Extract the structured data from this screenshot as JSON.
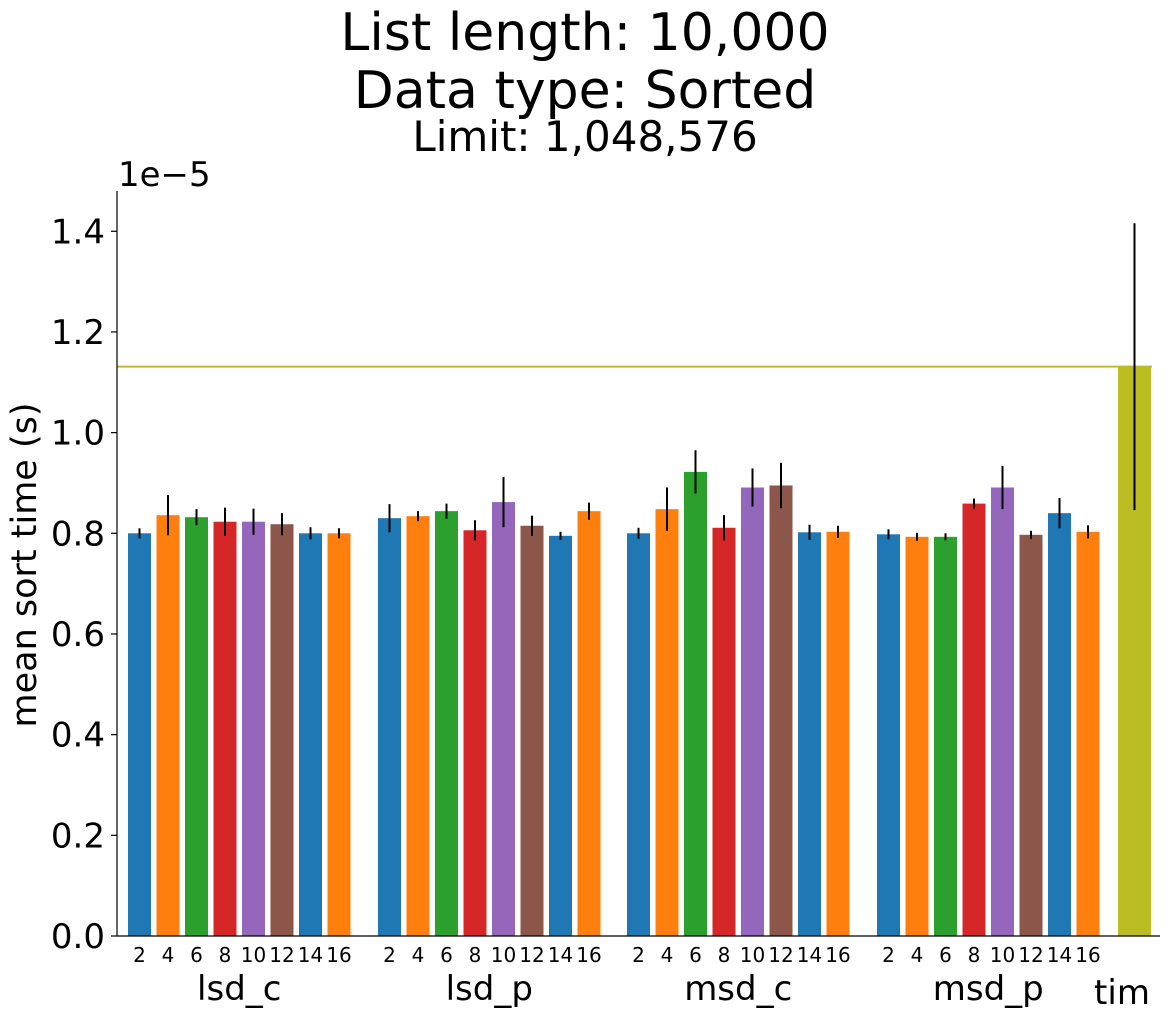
{
  "chart_data": {
    "type": "bar",
    "title": "List length: 10,000",
    "subtitle": "Data type: Sorted",
    "subtitle2": "Limit: 1,048,576",
    "ylabel": "mean sort time (s)",
    "y_offset_label": "1e−5",
    "ylim": [
      0,
      1.48
    ],
    "yticks": [
      "0.0",
      "0.2",
      "0.4",
      "0.6",
      "0.8",
      "1.0",
      "1.2",
      "1.4"
    ],
    "ytick_values": [
      0.0,
      0.2,
      0.4,
      0.6,
      0.8,
      1.0,
      1.2,
      1.4
    ],
    "bar_tick_labels": [
      "2",
      "4",
      "6",
      "8",
      "10",
      "12",
      "14",
      "16"
    ],
    "groups": [
      {
        "name": "lsd_c",
        "values": [
          0.8,
          0.836,
          0.832,
          0.823,
          0.823,
          0.818,
          0.8,
          0.8
        ],
        "errors": [
          0.01,
          0.04,
          0.016,
          0.028,
          0.026,
          0.022,
          0.012,
          0.01
        ]
      },
      {
        "name": "lsd_p",
        "values": [
          0.83,
          0.834,
          0.844,
          0.806,
          0.862,
          0.815,
          0.795,
          0.844
        ],
        "errors": [
          0.028,
          0.01,
          0.015,
          0.02,
          0.05,
          0.02,
          0.008,
          0.017
        ]
      },
      {
        "name": "msd_c",
        "values": [
          0.8,
          0.848,
          0.922,
          0.811,
          0.891,
          0.895,
          0.802,
          0.803
        ],
        "errors": [
          0.011,
          0.043,
          0.043,
          0.025,
          0.038,
          0.045,
          0.015,
          0.012
        ]
      },
      {
        "name": "msd_p",
        "values": [
          0.798,
          0.793,
          0.793,
          0.859,
          0.891,
          0.797,
          0.84,
          0.803
        ],
        "errors": [
          0.01,
          0.008,
          0.007,
          0.01,
          0.043,
          0.008,
          0.03,
          0.013
        ]
      }
    ],
    "single_bar": {
      "name": "tim",
      "value": 1.131,
      "error": 0.285
    },
    "reference_line": {
      "value": 1.131
    },
    "bar_colors": [
      "#1f77b4",
      "#ff7f0e",
      "#2ca02c",
      "#d62728",
      "#9467bd",
      "#8c564b",
      "#1f77b4",
      "#ff7f0e"
    ],
    "tim_color": "#bcbd22",
    "grid": false
  }
}
